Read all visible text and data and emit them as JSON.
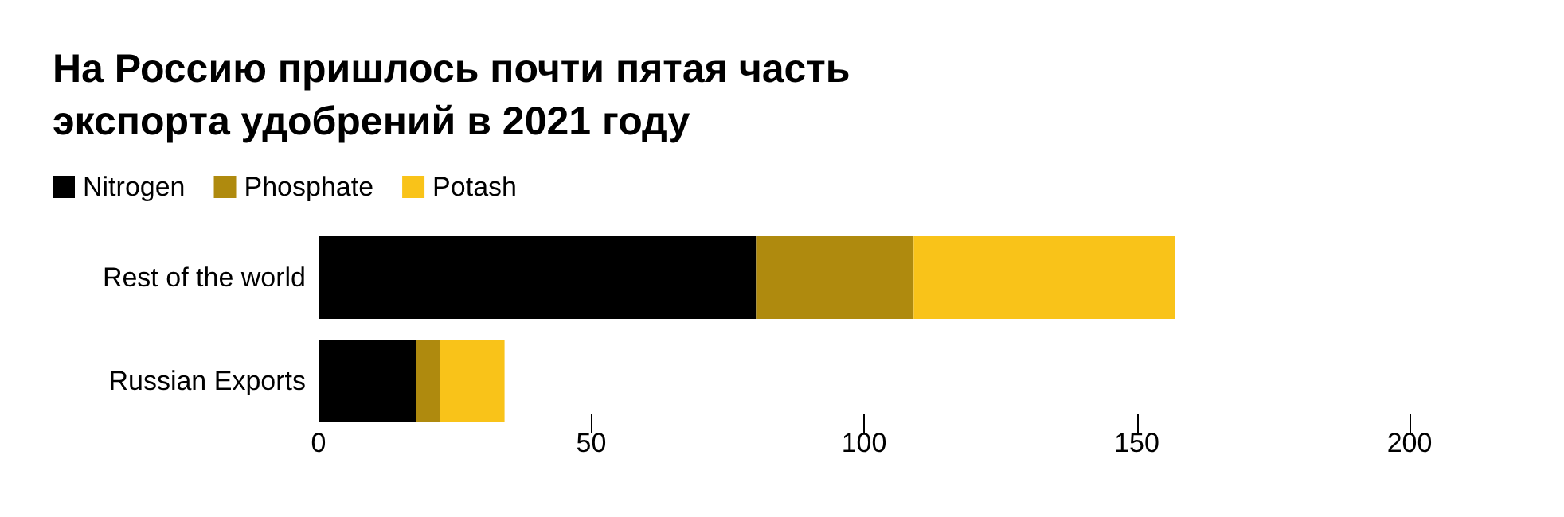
{
  "chart_data": {
    "type": "bar",
    "orientation": "horizontal",
    "stacked": true,
    "title": "На Россию пришлось почти пятая часть экспорта удобрений в 2021 году",
    "categories": [
      "Rest of the world",
      "Russian Exports"
    ],
    "series": [
      {
        "name": "Nitrogen",
        "color": "#000000",
        "values": [
          80.2,
          17.9
        ]
      },
      {
        "name": "Phosphate",
        "color": "#af8a0e",
        "values": [
          28.9,
          4.3
        ]
      },
      {
        "name": "Potash",
        "color": "#f9c319",
        "values": [
          47.9,
          11.9
        ]
      }
    ],
    "xlim": [
      0,
      200
    ],
    "xticks": [
      0,
      50,
      100,
      150,
      200
    ],
    "grid": false,
    "legend": "top left"
  }
}
